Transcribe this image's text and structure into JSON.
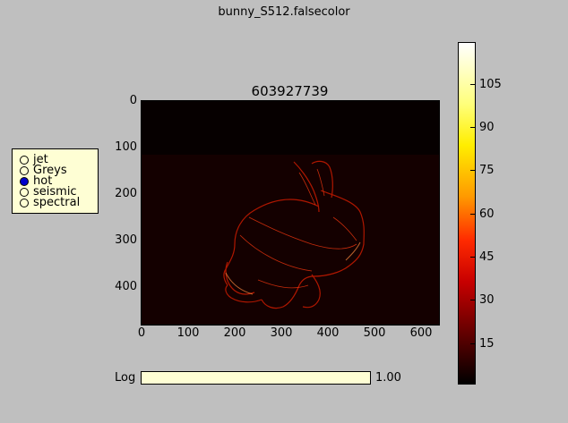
{
  "window": {
    "title": "bunny_S512.falsecolor"
  },
  "image": {
    "title": "603927739",
    "y_ticks": [
      "0",
      "100",
      "200",
      "300",
      "400"
    ],
    "x_ticks": [
      "0",
      "100",
      "200",
      "300",
      "400",
      "500",
      "600"
    ]
  },
  "colormap_selector": {
    "options": [
      "jet",
      "Greys",
      "hot",
      "seismic",
      "spectral"
    ],
    "selected": "hot"
  },
  "colorbar": {
    "ticks": [
      "105",
      "90",
      "75",
      "60",
      "45",
      "30",
      "15"
    ],
    "colors": {
      "low": "#000000",
      "mid": "#ff2a00",
      "high": "#ffffff"
    }
  },
  "log_slider": {
    "label": "Log",
    "value": "1.00",
    "fill_fraction": 1.0
  }
}
